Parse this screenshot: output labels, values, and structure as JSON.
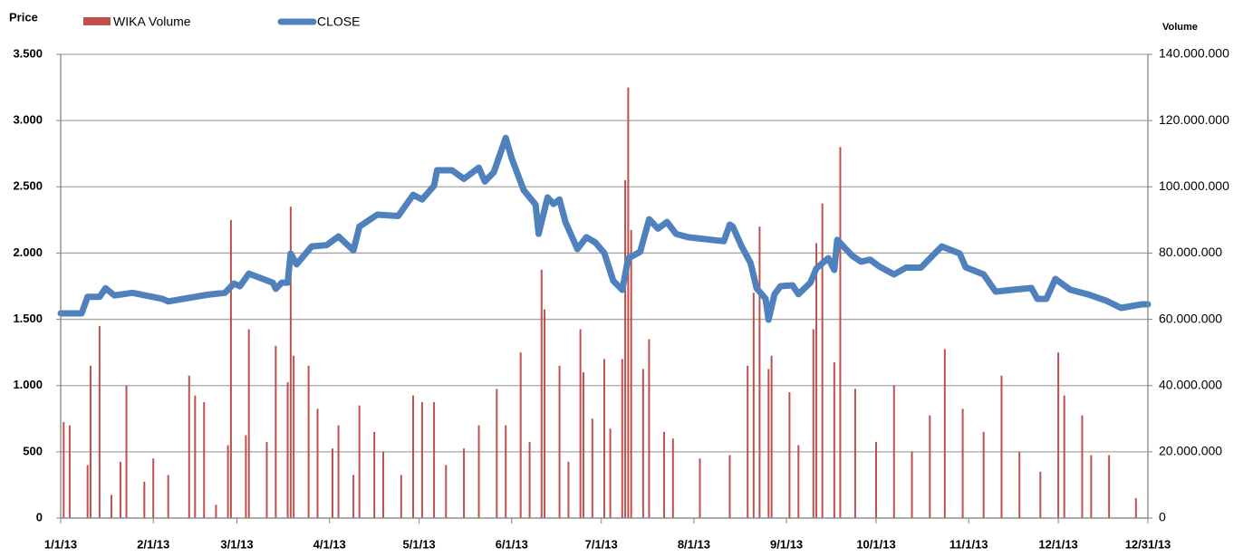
{
  "chart_data": {
    "type": "combo",
    "ylabel": "Price",
    "y2label": "Volume",
    "grid": true,
    "xlim": [
      "1/1/13",
      "12/31/13"
    ],
    "xticks": [
      "1/1/13",
      "2/1/13",
      "3/1/13",
      "4/1/13",
      "5/1/13",
      "6/1/13",
      "7/1/13",
      "8/1/13",
      "9/1/13",
      "10/1/13",
      "11/1/13",
      "12/1/13",
      "12/31/13"
    ],
    "ylim": [
      0,
      3500
    ],
    "yticks": [
      0,
      500,
      {
        "value": 1000,
        "label": "1.000"
      },
      {
        "value": 1500,
        "label": "1.500"
      },
      {
        "value": 2000,
        "label": "2.000"
      },
      {
        "value": 2500,
        "label": "2.500"
      },
      {
        "value": 3000,
        "label": "3.000"
      },
      {
        "value": 3500,
        "label": "3.500"
      }
    ],
    "y2lim": [
      0,
      140000000
    ],
    "y2ticks": [
      0,
      {
        "value": 20000000,
        "label": "20.000.000"
      },
      {
        "value": 40000000,
        "label": "40.000.000"
      },
      {
        "value": 60000000,
        "label": "60.000.000"
      },
      {
        "value": 80000000,
        "label": "80.000.000"
      },
      {
        "value": 100000000,
        "label": "100.000.000"
      },
      {
        "value": 120000000,
        "label": "120.000.000"
      },
      {
        "value": 140000000,
        "label": "140.000.000"
      }
    ],
    "series": [
      {
        "name": "WIKA Volume",
        "type": "bar",
        "axis": "y2",
        "color": "#c0504d",
        "x": [
          "1/2/13",
          "1/4/13",
          "1/10/13",
          "1/11/13",
          "1/14/13",
          "1/18/13",
          "1/21/13",
          "1/23/13",
          "1/29/13",
          "2/1/13",
          "2/6/13",
          "2/13/13",
          "2/15/13",
          "2/18/13",
          "2/22/13",
          "2/26/13",
          "2/27/13",
          "3/4/13",
          "3/5/13",
          "3/11/13",
          "3/14/13",
          "3/18/13",
          "3/19/13",
          "3/20/13",
          "3/25/13",
          "3/28/13",
          "4/2/13",
          "4/4/13",
          "4/9/13",
          "4/11/13",
          "4/16/13",
          "4/19/13",
          "4/25/13",
          "4/29/13",
          "5/2/13",
          "5/6/13",
          "5/10/13",
          "5/16/13",
          "5/21/13",
          "5/27/13",
          "5/30/13",
          "6/4/13",
          "6/7/13",
          "6/11/13",
          "6/12/13",
          "6/17/13",
          "6/20/13",
          "6/24/13",
          "6/25/13",
          "6/28/13",
          "7/2/13",
          "7/4/13",
          "7/8/13",
          "7/9/13",
          "7/10/13",
          "7/11/13",
          "7/15/13",
          "7/17/13",
          "7/22/13",
          "7/25/13",
          "8/3/13",
          "8/13/13",
          "8/19/13",
          "8/21/13",
          "8/23/13",
          "8/26/13",
          "8/27/13",
          "9/2/13",
          "9/5/13",
          "9/10/13",
          "9/11/13",
          "9/13/13",
          "9/17/13",
          "9/19/13",
          "9/24/13",
          "10/1/13",
          "10/7/13",
          "10/13/13",
          "10/19/13",
          "10/24/13",
          "10/30/13",
          "11/6/13",
          "11/12/13",
          "11/18/13",
          "11/25/13",
          "12/1/13",
          "12/3/13",
          "12/9/13",
          "12/12/13",
          "12/18/13",
          "12/27/13"
        ],
        "values": [
          29000000,
          28000000,
          16000000,
          46000000,
          58000000,
          7000000,
          17000000,
          40000000,
          11000000,
          18000000,
          13000000,
          43000000,
          37000000,
          35000000,
          4000000,
          22000000,
          90000000,
          25000000,
          57000000,
          23000000,
          52000000,
          41000000,
          94000000,
          49000000,
          46000000,
          33000000,
          21000000,
          28000000,
          13000000,
          34000000,
          26000000,
          20000000,
          13000000,
          37000000,
          35000000,
          35000000,
          16000000,
          21000000,
          28000000,
          39000000,
          28000000,
          50000000,
          23000000,
          75000000,
          63000000,
          46000000,
          17000000,
          57000000,
          44000000,
          30000000,
          48000000,
          27000000,
          48000000,
          102000000,
          130000000,
          87000000,
          45000000,
          54000000,
          26000000,
          24000000,
          18000000,
          19000000,
          46000000,
          68000000,
          88000000,
          45000000,
          49000000,
          38000000,
          22000000,
          57000000,
          83000000,
          95000000,
          47000000,
          112000000,
          39000000,
          23000000,
          40000000,
          20000000,
          31000000,
          51000000,
          33000000,
          26000000,
          43000000,
          20000000,
          14000000,
          50000000,
          37000000,
          31000000,
          19000000,
          19000000,
          6000000
        ]
      },
      {
        "name": "CLOSE",
        "type": "line",
        "color": "#4f81bd",
        "x": [
          "1/1/13",
          "1/8/13",
          "1/10/13",
          "1/14/13",
          "1/16/13",
          "1/19/13",
          "1/25/13",
          "2/4/13",
          "2/6/13",
          "2/10/13",
          "2/19/13",
          "2/25/13",
          "2/28/13",
          "3/2/13",
          "3/5/13",
          "3/13/13",
          "3/14/13",
          "3/16/13",
          "3/18/13",
          "3/19/13",
          "3/21/13",
          "3/26/13",
          "3/31/13",
          "4/4/13",
          "4/9/13",
          "4/11/13",
          "4/17/13",
          "4/24/13",
          "4/29/13",
          "5/2/13",
          "5/6/13",
          "5/7/13",
          "5/12/13",
          "5/16/13",
          "5/21/13",
          "5/23/13",
          "5/26/13",
          "5/30/13",
          "6/1/13",
          "6/5/13",
          "6/9/13",
          "6/10/13",
          "6/13/13",
          "6/15/13",
          "6/17/13",
          "6/19/13",
          "6/23/13",
          "6/26/13",
          "6/29/13",
          "7/2/13",
          "7/5/13",
          "7/8/13",
          "7/10/13",
          "7/14/13",
          "7/17/13",
          "7/20/13",
          "7/23/13",
          "7/26/13",
          "7/30/13",
          "8/11/13",
          "8/13/13",
          "8/14/13",
          "8/17/13",
          "8/20/13",
          "8/22/13",
          "8/25/13",
          "8/26/13",
          "8/28/13",
          "8/30/13",
          "9/3/13",
          "9/5/13",
          "9/9/13",
          "9/11/13",
          "9/15/13",
          "9/17/13",
          "9/18/13",
          "9/23/13",
          "9/26/13",
          "9/29/13",
          "10/2/13",
          "10/7/13",
          "10/11/13",
          "10/16/13",
          "10/20/13",
          "10/23/13",
          "10/29/13",
          "10/31/13",
          "11/6/13",
          "11/10/13",
          "11/16/13",
          "11/22/13",
          "11/24/13",
          "11/27/13",
          "11/30/13",
          "12/5/13",
          "12/11/13",
          "12/17/13",
          "12/22/13",
          "12/29/13",
          "12/31/13"
        ],
        "values": [
          1545,
          1545,
          1670,
          1670,
          1735,
          1680,
          1700,
          1655,
          1635,
          1650,
          1685,
          1700,
          1770,
          1750,
          1845,
          1777,
          1730,
          1777,
          1777,
          1996,
          1915,
          2050,
          2060,
          2125,
          2020,
          2200,
          2290,
          2280,
          2440,
          2405,
          2508,
          2625,
          2625,
          2560,
          2645,
          2540,
          2610,
          2870,
          2715,
          2475,
          2365,
          2145,
          2420,
          2370,
          2405,
          2235,
          2030,
          2120,
          2080,
          2000,
          1790,
          1722,
          1960,
          2010,
          2255,
          2185,
          2235,
          2145,
          2120,
          2090,
          2215,
          2200,
          2050,
          1925,
          1735,
          1655,
          1497,
          1690,
          1750,
          1757,
          1690,
          1777,
          1885,
          1962,
          1873,
          2100,
          1980,
          1935,
          1950,
          1900,
          1839,
          1890,
          1890,
          1982,
          2050,
          1997,
          1893,
          1839,
          1709,
          1723,
          1736,
          1654,
          1654,
          1805,
          1723,
          1688,
          1641,
          1586,
          1613,
          1613
        ]
      }
    ]
  }
}
